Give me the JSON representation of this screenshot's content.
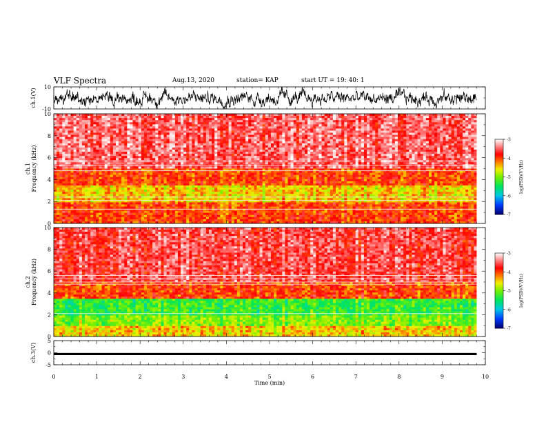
{
  "header": {
    "title": "VLF Spectra",
    "date": "Aug.13, 2020",
    "station": "station= KAP",
    "start": "start  UT =   19: 40: 1"
  },
  "chart_data": [
    {
      "type": "line",
      "panel": "ch1-waveform",
      "ylabel": "ch.1(V)",
      "ylim": [
        -10,
        10
      ],
      "xlim": [
        0,
        10
      ],
      "y_tick_labels": [
        "-10",
        "10"
      ],
      "series_color": "#000000",
      "x_end": 9.8,
      "approx_values": {
        "mean": -0.3,
        "min": -10,
        "max": 10,
        "typical_band": [
          -6,
          6
        ]
      }
    },
    {
      "type": "heatmap",
      "panel": "ch1-spectrogram",
      "ylabel": "ch.1\nFrequency (kHz)",
      "ylim": [
        0,
        10
      ],
      "xlim": [
        0,
        10
      ],
      "y_tick_labels": [
        "0",
        "2",
        "4",
        "6",
        "8",
        "10"
      ],
      "x_end": 9.8,
      "colorbar": {
        "label": "log(PSD)(V²/Hz)",
        "range": [
          -7,
          -3
        ],
        "tick_labels": [
          "-7",
          "-6",
          "-5",
          "-4",
          "-3"
        ]
      },
      "approx_log_psd_by_freq": [
        {
          "freq_khz": [
            0,
            1
          ],
          "log_psd": -4.0
        },
        {
          "freq_khz": [
            1,
            2
          ],
          "log_psd": -4.0
        },
        {
          "freq_khz": [
            2,
            3.5
          ],
          "log_psd": -4.5
        },
        {
          "freq_khz": [
            3.5,
            5
          ],
          "log_psd": -4.0
        },
        {
          "freq_khz": [
            5,
            10
          ],
          "log_psd": -3.5
        }
      ],
      "horizontal_lines_khz": [
        1.3,
        2.1,
        2.4,
        4.8,
        5.3,
        5.7
      ]
    },
    {
      "type": "heatmap",
      "panel": "ch2-spectrogram",
      "ylabel": "ch.2\nFrequency (kHz)",
      "ylim": [
        0,
        10
      ],
      "xlim": [
        0,
        10
      ],
      "y_tick_labels": [
        "0",
        "2",
        "4",
        "6",
        "8",
        "10"
      ],
      "x_end": 9.8,
      "colorbar": {
        "label": "log(PSD)(V²/Hz)",
        "range": [
          -7,
          -3
        ],
        "tick_labels": [
          "-7",
          "-6",
          "-5",
          "-4",
          "-3"
        ]
      },
      "approx_log_psd_by_freq": [
        {
          "freq_khz": [
            0,
            1
          ],
          "log_psd": -4.5
        },
        {
          "freq_khz": [
            1,
            2
          ],
          "log_psd": -5.0
        },
        {
          "freq_khz": [
            2,
            3.5
          ],
          "log_psd": -5.3
        },
        {
          "freq_khz": [
            3.5,
            5
          ],
          "log_psd": -4.0
        },
        {
          "freq_khz": [
            5,
            10
          ],
          "log_psd": -3.6
        }
      ],
      "horizontal_lines_khz": [
        2.1,
        4.8,
        5.0,
        5.3,
        5.6
      ]
    },
    {
      "type": "line",
      "panel": "ch3-waveform",
      "ylabel": "ch.3(V)",
      "xlabel": "Time (min)",
      "ylim": [
        -5,
        5
      ],
      "xlim": [
        0,
        10
      ],
      "y_tick_labels": [
        "-5",
        "0",
        "5"
      ],
      "x_tick_labels": [
        "0",
        "1",
        "2",
        "3",
        "4",
        "5",
        "6",
        "7",
        "8",
        "9",
        "10"
      ],
      "x_end": 9.8,
      "series_color": "#000000",
      "approx_values": {
        "mean": -0.5,
        "band": [
          -1.0,
          -0.1
        ]
      }
    }
  ]
}
